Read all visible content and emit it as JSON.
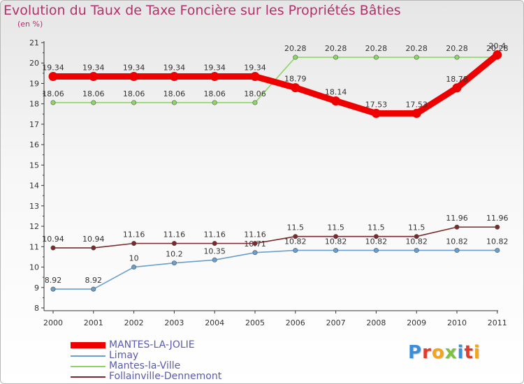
{
  "chart_data": {
    "type": "line",
    "title": "Evolution du Taux de Taxe Foncière sur les Propriétés Bâties",
    "subtitle": "(en %)",
    "x": [
      "2000",
      "2001",
      "2002",
      "2003",
      "2004",
      "2005",
      "2006",
      "2007",
      "2008",
      "2009",
      "2010",
      "2011"
    ],
    "ylim": [
      8,
      21
    ],
    "yticks": [
      "8",
      "9",
      "10",
      "11",
      "12",
      "13",
      "14",
      "15",
      "16",
      "17",
      "18",
      "19",
      "20",
      "21"
    ],
    "grid": false,
    "series": [
      {
        "name": "MANTES-LA-JOLIE",
        "color": "#ee0000",
        "values": [
          19.34,
          19.34,
          19.34,
          19.34,
          19.34,
          19.34,
          18.79,
          18.14,
          17.53,
          17.53,
          18.78,
          20.4
        ],
        "labels": [
          "19.34",
          "19.34",
          "19.34",
          "19.34",
          "19.34",
          "19.34",
          "18.79",
          "18.14",
          "17.53",
          "17.53",
          "18.78",
          "20.4"
        ]
      },
      {
        "name": "Limay",
        "color": "#6a9fcc",
        "values": [
          8.92,
          8.92,
          10,
          10.2,
          10.35,
          10.71,
          10.82,
          10.82,
          10.82,
          10.82,
          10.82,
          10.82
        ],
        "labels": [
          "8.92",
          "8.92",
          "10",
          "10.2",
          "10.35",
          "10.71",
          "10.82",
          "10.82",
          "10.82",
          "10.82",
          "10.82",
          "10.82"
        ]
      },
      {
        "name": "Mantes-la-Ville",
        "color": "#8fd468",
        "values": [
          18.06,
          18.06,
          18.06,
          18.06,
          18.06,
          18.06,
          20.28,
          20.28,
          20.28,
          20.28,
          20.28,
          20.28
        ],
        "labels": [
          "18.06",
          "18.06",
          "18.06",
          "18.06",
          "18.06",
          "18.06",
          "20.28",
          "20.28",
          "20.28",
          "20.28",
          "20.28",
          "20.28"
        ]
      },
      {
        "name": "Follainville-Dennemont",
        "color": "#7a2a2a",
        "values": [
          10.94,
          10.94,
          11.16,
          11.16,
          11.16,
          11.16,
          11.5,
          11.5,
          11.5,
          11.5,
          11.96,
          11.96
        ],
        "labels": [
          "10.94",
          "10.94",
          "11.16",
          "11.16",
          "11.16",
          "11.16",
          "11.5",
          "11.5",
          "11.5",
          "11.5",
          "11.96",
          "11.96"
        ]
      }
    ],
    "legend_position": "bottom-left"
  },
  "logo": {
    "text": "Proxiti",
    "colors": [
      "#3a8fd8",
      "#e23b2e",
      "#f2a51a",
      "#7cc242",
      "#3a8fd8",
      "#e23b2e",
      "#f2a51a"
    ]
  },
  "colors": {
    "title": "#b4306c",
    "axis": "#333333"
  }
}
